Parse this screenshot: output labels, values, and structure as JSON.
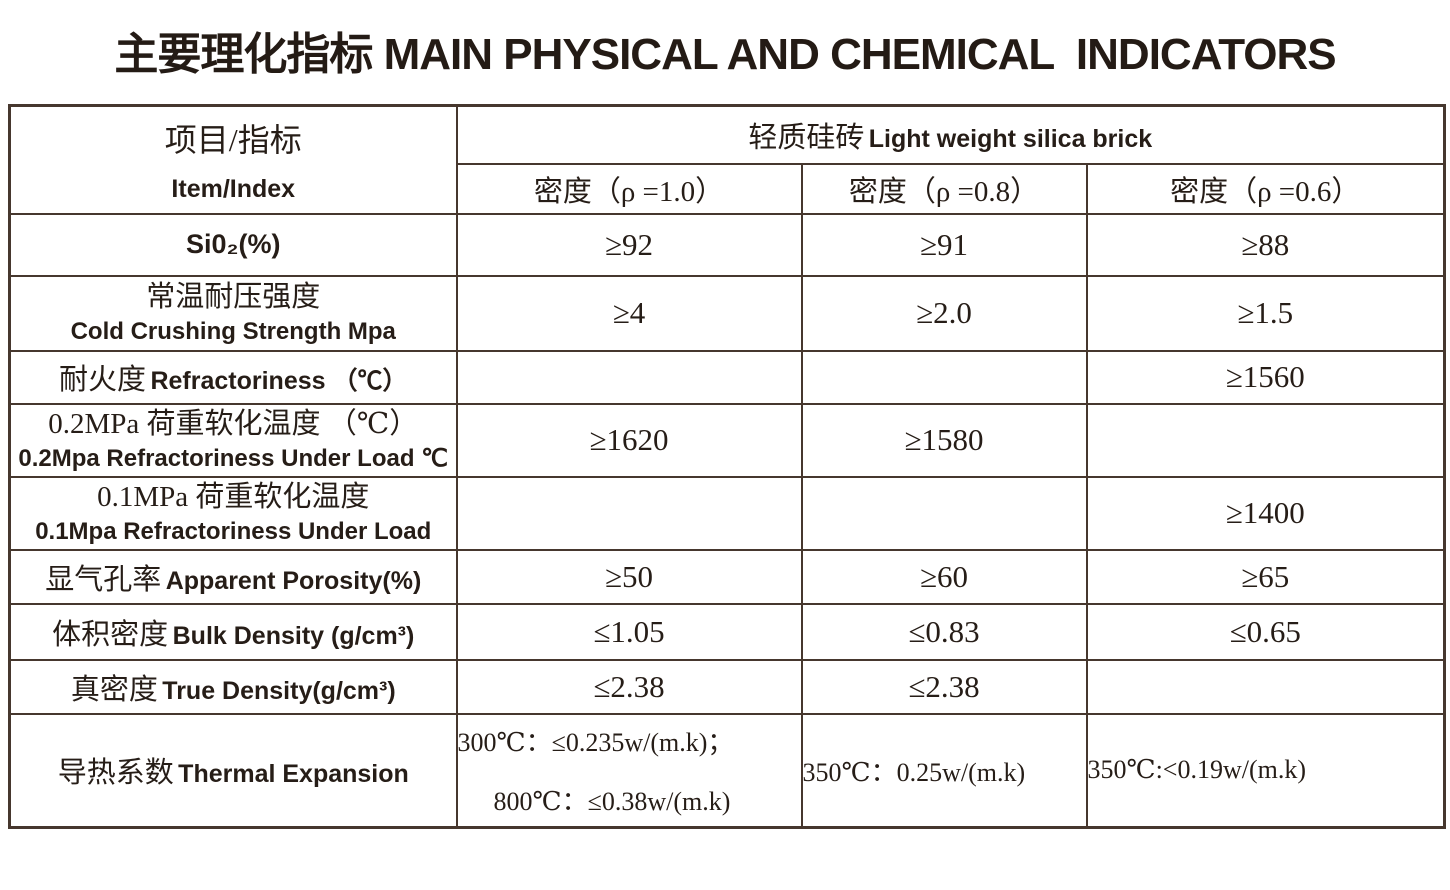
{
  "colors": {
    "background": "#ffffff",
    "text": "#261d17",
    "border": "#46372e"
  },
  "title": {
    "zh": "主要理化指标",
    "en": "MAIN PHYSICAL AND CHEMICAL  INDICATORS"
  },
  "table": {
    "header": {
      "item_zh": "项目/指标",
      "item_en": "Item/Index",
      "group_zh": "轻质硅砖",
      "group_en": "Light weight silica brick",
      "columns": [
        "密度（ρ =1.0）",
        "密度（ρ =0.8）",
        "密度（ρ =0.6）"
      ]
    },
    "rows": [
      {
        "label": "Si0₂(%)",
        "values": [
          "≥92",
          "≥91",
          "≥88"
        ]
      },
      {
        "zh": "常温耐压强度",
        "en": "Cold Crushing Strength Mpa",
        "values": [
          "≥4",
          "≥2.0",
          "≥1.5"
        ]
      },
      {
        "zh": "耐火度",
        "en": "Refractoriness （℃）",
        "values": [
          "",
          "",
          "≥1560"
        ]
      },
      {
        "zh": "0.2MPa 荷重软化温度 （℃）",
        "en": "0.2Mpa Refractoriness Under Load ℃",
        "values": [
          "≥1620",
          "≥1580",
          ""
        ]
      },
      {
        "zh": "0.1MPa 荷重软化温度",
        "en": "0.1Mpa Refractoriness Under Load",
        "values": [
          "",
          "",
          "≥1400"
        ]
      },
      {
        "zh": "显气孔率",
        "en": "Apparent Porosity(%)",
        "values": [
          "≥50",
          "≥60",
          "≥65"
        ]
      },
      {
        "zh": "体积密度",
        "en": "Bulk Density (g/cm³)",
        "values": [
          "≤1.05",
          "≤0.83",
          "≤0.65"
        ]
      },
      {
        "zh": "真密度",
        "en": "True Density(g/cm³)",
        "values": [
          "≤2.38",
          "≤2.38",
          ""
        ]
      },
      {
        "zh": "导热系数",
        "en": "Thermal Expansion",
        "col1_lines": [
          "300℃：≤0.235w/(m.k)；",
          "800℃：≤0.38w/(m.k)"
        ],
        "col2": "350℃：0.25w/(m.k)",
        "col3": "350℃:<0.19w/(m.k)"
      }
    ]
  }
}
